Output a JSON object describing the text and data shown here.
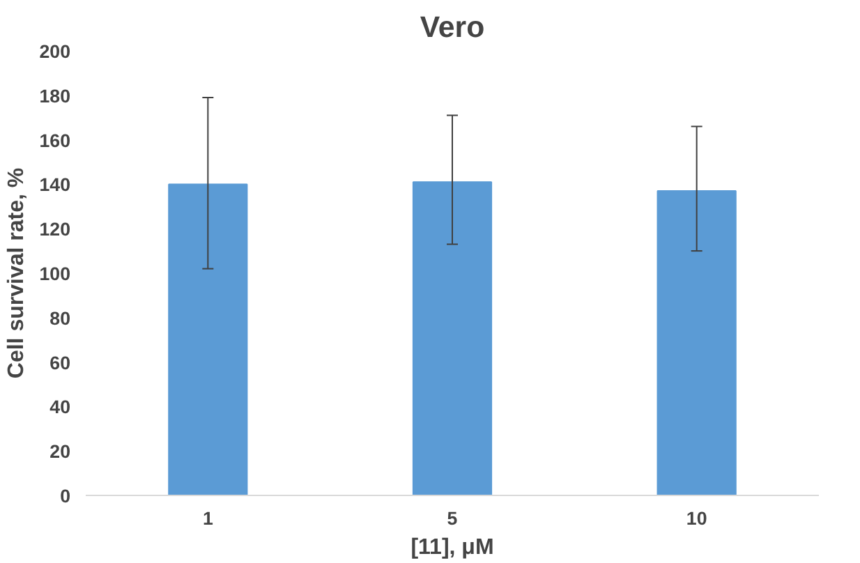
{
  "chart_data": {
    "type": "bar",
    "title": "Vero",
    "xlabel": "[11], μM",
    "ylabel": "Cell survival rate, %",
    "categories": [
      "1",
      "5",
      "10"
    ],
    "values": [
      140,
      141,
      137
    ],
    "errors": [
      [
        102,
        179
      ],
      [
        113,
        171
      ],
      [
        110,
        166
      ]
    ],
    "color": "#5b9bd5",
    "ylim": [
      0,
      200
    ],
    "yticks": [
      0,
      20,
      40,
      60,
      80,
      100,
      120,
      140,
      160,
      180,
      200
    ],
    "grid": false
  }
}
